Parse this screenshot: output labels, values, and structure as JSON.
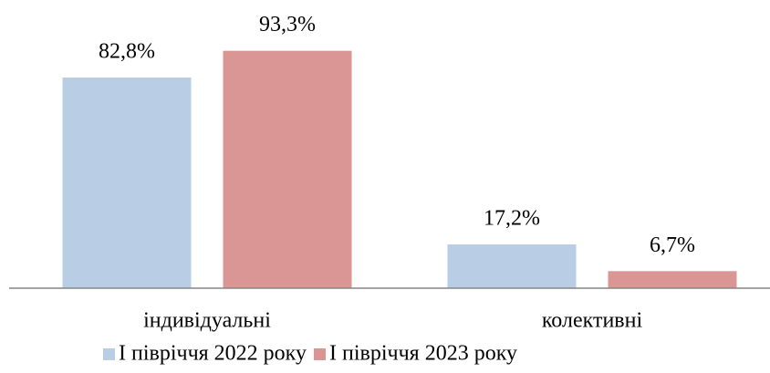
{
  "chart_data": {
    "type": "bar",
    "categories": [
      "індивідуальні",
      "колективні"
    ],
    "series": [
      {
        "name": "І півріччя 2022 року",
        "color": "#b9cde5",
        "values": [
          82.8,
          17.2
        ],
        "value_labels": [
          "82,8%",
          "17,2%"
        ]
      },
      {
        "name": "І півріччя 2023 року",
        "color": "#d99694",
        "values": [
          93.3,
          6.7
        ],
        "value_labels": [
          "93,3%",
          "6,7%"
        ]
      }
    ],
    "legend": "bottom"
  }
}
